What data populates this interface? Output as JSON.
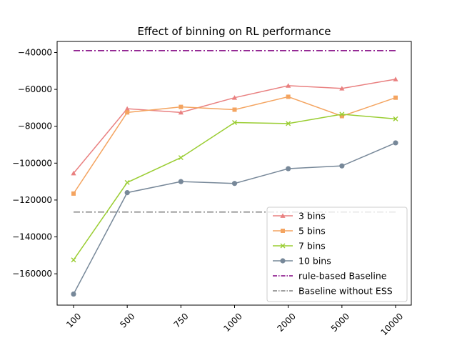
{
  "chart_data": {
    "type": "line",
    "title": "Effect of binning on RL performance",
    "xlabel": "",
    "ylabel": "",
    "categories": [
      "100",
      "500",
      "750",
      "1000",
      "2000",
      "5000",
      "10000"
    ],
    "yticks": [
      -40000,
      -60000,
      -80000,
      -100000,
      -120000,
      -140000,
      -160000
    ],
    "ytick_labels": [
      "−40000",
      "−60000",
      "−80000",
      "−100000",
      "−120000",
      "−140000",
      "−160000"
    ],
    "ylim": [
      -177000,
      -34000
    ],
    "grid": false,
    "legend_position": "lower-right",
    "series": [
      {
        "name": "3 bins",
        "values": [
          -105500,
          -70500,
          -72500,
          -64500,
          -58000,
          -59500,
          -54500
        ],
        "color": "#e98080",
        "marker": "triangle"
      },
      {
        "name": "5 bins",
        "values": [
          -116500,
          -72500,
          -69500,
          -71000,
          -64000,
          -74500,
          -64500
        ],
        "color": "#f4a460",
        "marker": "square"
      },
      {
        "name": "7 bins",
        "values": [
          -152500,
          -110500,
          -97000,
          -78000,
          -78500,
          -73500,
          -76000
        ],
        "color": "#9acd32",
        "marker": "x"
      },
      {
        "name": "10 bins",
        "values": [
          -171000,
          -116000,
          -110000,
          -111000,
          -103000,
          -101500,
          -89000
        ],
        "color": "#778899",
        "marker": "circle"
      }
    ],
    "reference_lines": [
      {
        "name": "rule-based Baseline",
        "value": -39000,
        "color": "#800080"
      },
      {
        "name": "Baseline without ESS",
        "value": -126500,
        "color": "#808080"
      }
    ]
  }
}
